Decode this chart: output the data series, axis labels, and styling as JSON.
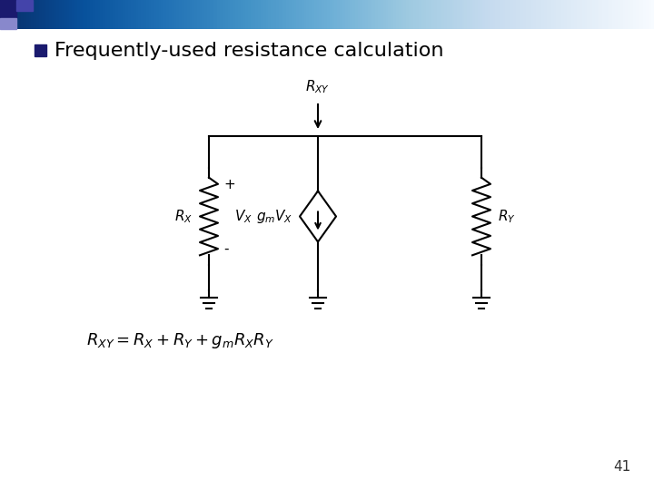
{
  "title": "Frequently-used resistance calculation",
  "slide_number": "41",
  "bg_color": "#ffffff",
  "text_color": "#000000",
  "title_color": "#000000",
  "bullet_color": "#1a1a6e",
  "formula": "$R_{XY} = R_X + R_Y + g_m R_X R_Y$",
  "header_dark1": "#1a1a6e",
  "header_dark2": "#4444aa",
  "circuit": {
    "RXY_label": "$R_{XY}$",
    "RX_label": "$R_X$",
    "VX_plus": "+",
    "VX_label": "$V_X$",
    "VX_minus": "-",
    "gm_label": "$g_mV_X$",
    "RY_label": "$R_Y$"
  }
}
